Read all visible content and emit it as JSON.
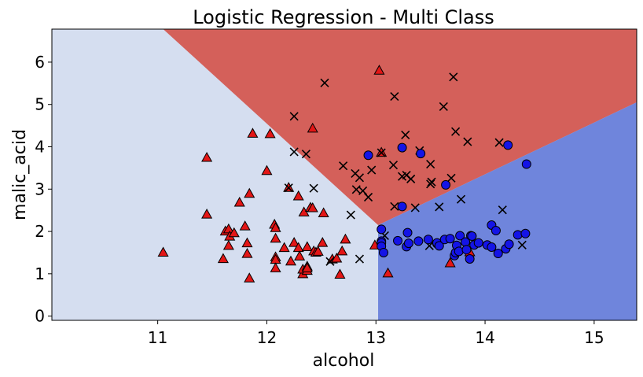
{
  "chart_data": {
    "type": "scatter",
    "title": "Logistic Regression - Multi Class",
    "xlabel": "alcohol",
    "ylabel": "malic_acid",
    "xlim": [
      10.03,
      15.39
    ],
    "ylim": [
      -0.1,
      6.78
    ],
    "xticks": [
      11,
      12,
      13,
      14,
      15
    ],
    "yticks": [
      0,
      1,
      2,
      3,
      4,
      5,
      6
    ],
    "grid": false,
    "legend": false,
    "colors": {
      "region_left": "#d5def0",
      "region_top": "#d4605a",
      "region_right": "#6f85dc",
      "triangle_fill": "#e31616",
      "circle_fill": "#1414e6",
      "cross": "#000000"
    },
    "regions": {
      "left_top_boundary": [
        [
          11.05,
          6.78
        ],
        [
          13.02,
          2.15
        ]
      ],
      "vertical_boundary": [
        [
          13.02,
          2.15
        ],
        [
          13.02,
          -0.1
        ]
      ],
      "right_top_boundary": [
        [
          13.02,
          2.15
        ],
        [
          15.39,
          5.05
        ]
      ]
    },
    "series": [
      {
        "marker": "triangle",
        "points": [
          [
            11.05,
            1.5
          ],
          [
            11.45,
            3.74
          ],
          [
            11.45,
            2.4
          ],
          [
            11.6,
            1.35
          ],
          [
            11.62,
            2.0
          ],
          [
            11.65,
            2.05
          ],
          [
            11.66,
            1.88
          ],
          [
            11.65,
            1.66
          ],
          [
            11.7,
            1.96
          ],
          [
            11.75,
            2.68
          ],
          [
            11.8,
            2.12
          ],
          [
            11.82,
            1.72
          ],
          [
            11.82,
            1.47
          ],
          [
            11.84,
            2.89
          ],
          [
            11.84,
            0.89
          ],
          [
            11.87,
            4.31
          ],
          [
            12.0,
            3.43
          ],
          [
            12.03,
            4.3
          ],
          [
            12.07,
            2.16
          ],
          [
            12.08,
            2.08
          ],
          [
            12.08,
            1.83
          ],
          [
            12.08,
            1.39
          ],
          [
            12.08,
            1.33
          ],
          [
            12.08,
            1.13
          ],
          [
            12.16,
            1.61
          ],
          [
            12.2,
            3.03
          ],
          [
            12.22,
            1.29
          ],
          [
            12.25,
            1.73
          ],
          [
            12.29,
            1.61
          ],
          [
            12.29,
            2.83
          ],
          [
            12.3,
            1.41
          ],
          [
            12.34,
            2.45
          ],
          [
            12.33,
            0.99
          ],
          [
            12.33,
            1.1
          ],
          [
            12.37,
            1.07
          ],
          [
            12.37,
            1.17
          ],
          [
            12.37,
            1.13
          ],
          [
            12.37,
            1.63
          ],
          [
            12.4,
            2.56
          ],
          [
            12.42,
            4.43
          ],
          [
            12.43,
            1.53
          ],
          [
            12.42,
            2.55
          ],
          [
            12.45,
            1.5
          ],
          [
            12.47,
            1.52
          ],
          [
            12.51,
            1.73
          ],
          [
            12.52,
            2.43
          ],
          [
            12.6,
            1.34
          ],
          [
            12.64,
            1.36
          ],
          [
            12.67,
            0.98
          ],
          [
            12.69,
            1.53
          ],
          [
            12.72,
            1.81
          ],
          [
            12.99,
            1.67
          ],
          [
            13.03,
            5.8
          ],
          [
            13.05,
            3.86
          ],
          [
            13.11,
            1.01
          ],
          [
            13.68,
            1.25
          ],
          [
            13.86,
            1.51
          ]
        ]
      },
      {
        "marker": "cross",
        "points": [
          [
            12.25,
            4.72
          ],
          [
            12.25,
            3.88
          ],
          [
            12.36,
            3.83
          ],
          [
            12.2,
            3.03
          ],
          [
            12.43,
            3.02
          ],
          [
            12.53,
            5.51
          ],
          [
            12.58,
            1.29
          ],
          [
            12.7,
            3.55
          ],
          [
            12.77,
            2.39
          ],
          [
            12.81,
            3.37
          ],
          [
            12.85,
            3.27
          ],
          [
            12.82,
            2.99
          ],
          [
            12.85,
            1.35
          ],
          [
            12.88,
            2.96
          ],
          [
            12.93,
            2.81
          ],
          [
            12.96,
            3.45
          ],
          [
            13.05,
            3.86
          ],
          [
            13.08,
            1.9
          ],
          [
            13.16,
            3.57
          ],
          [
            13.17,
            2.59
          ],
          [
            13.17,
            5.19
          ],
          [
            13.24,
            3.3
          ],
          [
            13.27,
            4.28
          ],
          [
            13.28,
            3.33
          ],
          [
            13.32,
            3.24
          ],
          [
            13.36,
            2.56
          ],
          [
            13.4,
            3.91
          ],
          [
            13.49,
            1.66
          ],
          [
            13.5,
            3.12
          ],
          [
            13.51,
            3.17
          ],
          [
            13.5,
            3.59
          ],
          [
            13.58,
            2.58
          ],
          [
            13.62,
            4.95
          ],
          [
            13.69,
            3.26
          ],
          [
            13.71,
            5.65
          ],
          [
            13.73,
            4.36
          ],
          [
            13.78,
            2.76
          ],
          [
            13.84,
            4.12
          ],
          [
            14.13,
            4.1
          ],
          [
            14.16,
            2.51
          ],
          [
            14.34,
            1.68
          ]
        ]
      },
      {
        "marker": "circle",
        "points": [
          [
            12.93,
            3.8
          ],
          [
            13.05,
            2.05
          ],
          [
            13.05,
            1.77
          ],
          [
            13.05,
            1.73
          ],
          [
            13.05,
            1.65
          ],
          [
            13.07,
            1.5
          ],
          [
            13.2,
            1.78
          ],
          [
            13.24,
            2.59
          ],
          [
            13.24,
            3.98
          ],
          [
            13.28,
            1.64
          ],
          [
            13.29,
            1.97
          ],
          [
            13.3,
            1.72
          ],
          [
            13.39,
            1.77
          ],
          [
            13.41,
            3.84
          ],
          [
            13.48,
            1.81
          ],
          [
            13.56,
            1.71
          ],
          [
            13.56,
            1.73
          ],
          [
            13.58,
            1.66
          ],
          [
            13.63,
            1.81
          ],
          [
            13.64,
            3.1
          ],
          [
            13.68,
            1.83
          ],
          [
            13.72,
            1.43
          ],
          [
            13.73,
            1.5
          ],
          [
            13.74,
            1.67
          ],
          [
            13.76,
            1.53
          ],
          [
            13.77,
            1.9
          ],
          [
            13.82,
            1.75
          ],
          [
            13.83,
            1.57
          ],
          [
            13.86,
            1.35
          ],
          [
            13.87,
            1.9
          ],
          [
            13.88,
            1.89
          ],
          [
            13.9,
            1.68
          ],
          [
            13.94,
            1.73
          ],
          [
            14.02,
            1.68
          ],
          [
            14.06,
            2.15
          ],
          [
            14.06,
            1.63
          ],
          [
            14.1,
            2.02
          ],
          [
            14.12,
            1.48
          ],
          [
            14.19,
            1.59
          ],
          [
            14.21,
            4.04
          ],
          [
            14.22,
            1.7
          ],
          [
            14.3,
            1.92
          ],
          [
            14.37,
            1.95
          ],
          [
            14.38,
            3.59
          ]
        ]
      }
    ]
  }
}
